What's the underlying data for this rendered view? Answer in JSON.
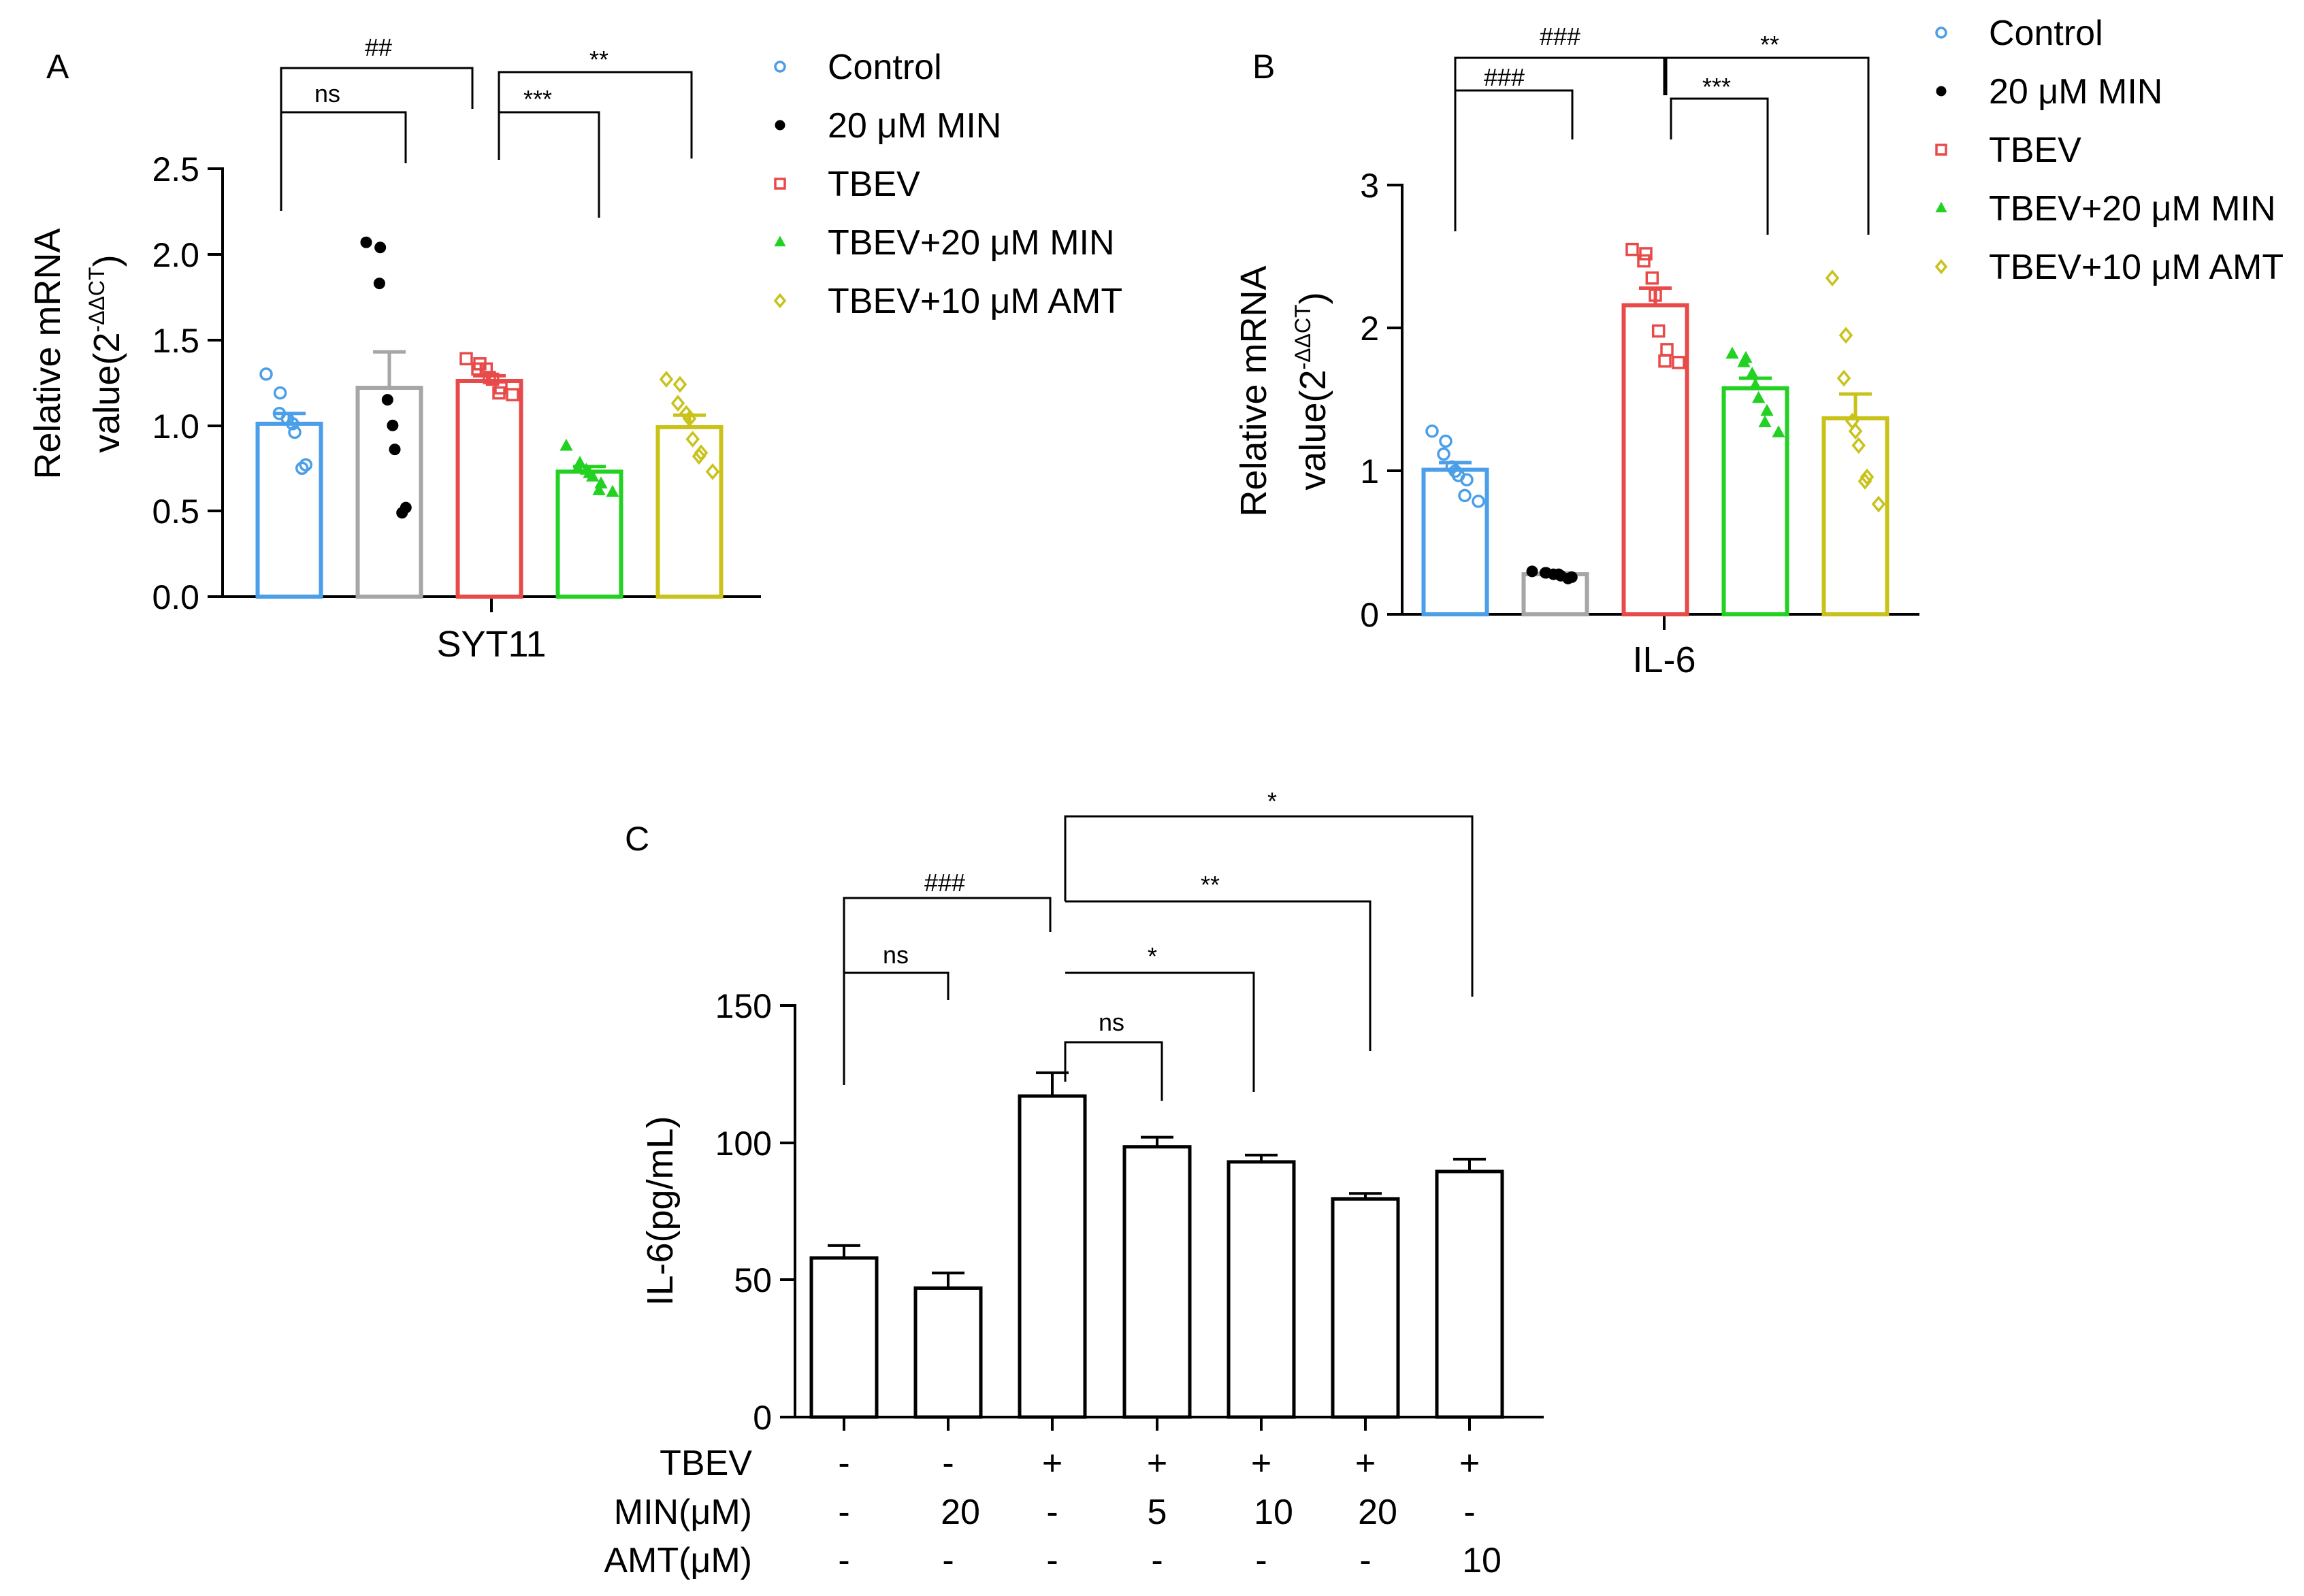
{
  "charts": {
    "A": {
      "letter": "A",
      "ylabel_line1": "Relative mRNA",
      "ylabel_line2_prefix": "value(2",
      "ylabel_line2_sup": "-ΔΔCT",
      "ylabel_line2_suffix": ")",
      "yticks": [
        "2.5",
        "2.0",
        "1.5",
        "1.0",
        "0.5",
        "0.0"
      ],
      "category": "SYT11",
      "sig": {
        "b1": "##",
        "b2": "ns",
        "b3": "**",
        "b4": "***"
      }
    },
    "B": {
      "letter": "B",
      "ylabel_line1": "Relative mRNA",
      "ylabel_line2_prefix": "value(2",
      "ylabel_line2_sup": "-ΔΔCT",
      "ylabel_line2_suffix": ")",
      "yticks": [
        "3",
        "2",
        "1",
        "0"
      ],
      "category": "IL-6",
      "sig": {
        "b1": "###",
        "b2": "###",
        "b3": "**",
        "b4": "***"
      }
    },
    "C": {
      "letter": "C",
      "ylabel": "IL-6(pg/mL)",
      "yticks": [
        "150",
        "100",
        "50",
        "0"
      ],
      "sig": {
        "b1": "###",
        "b2": "ns",
        "b3": "*",
        "b4": "**",
        "b5": "*",
        "b6": "ns"
      },
      "rows": [
        {
          "label": "TBEV",
          "values": [
            "-",
            "-",
            "+",
            "+",
            "+",
            "+",
            "+"
          ]
        },
        {
          "label": "MIN(μM)",
          "values": [
            "-",
            "20",
            "-",
            "5",
            "10",
            "20",
            "-"
          ]
        },
        {
          "label": "AMT(μM)",
          "values": [
            "-",
            "-",
            "-",
            "-",
            "-",
            "-",
            "10"
          ]
        }
      ]
    }
  },
  "legendA": [
    {
      "label": "Control",
      "marker": "circle-open",
      "color": "#4b9ee8"
    },
    {
      "label": "20 μM MIN",
      "marker": "dot",
      "color": "#000000"
    },
    {
      "label": "TBEV",
      "marker": "square-open",
      "color": "#e84a4a"
    },
    {
      "label": "TBEV+20 μM MIN",
      "marker": "triangle",
      "color": "#22d122"
    },
    {
      "label": "TBEV+10 μM AMT",
      "marker": "diamond-open",
      "color": "#c9c21a"
    }
  ],
  "legendB": [
    {
      "label": "Control",
      "marker": "circle-open",
      "color": "#4b9ee8"
    },
    {
      "label": "20 μM MIN",
      "marker": "dot",
      "color": "#000000"
    },
    {
      "label": "TBEV",
      "marker": "square-open",
      "color": "#e84a4a"
    },
    {
      "label": "TBEV+20 μM MIN",
      "marker": "triangle",
      "color": "#22d122"
    },
    {
      "label": "TBEV+10 μM AMT",
      "marker": "diamond-open",
      "color": "#c9c21a"
    }
  ],
  "chart_data": [
    {
      "panel": "A",
      "type": "bar",
      "ylabel": "Relative mRNA value(2-ΔΔCT)",
      "xlabel": "SYT11",
      "ylim": [
        0,
        2.5
      ],
      "series": [
        {
          "name": "Control",
          "value": 1.01,
          "error": 0.06,
          "color": "#4b9ee8",
          "bar_color": "#4b9ee8",
          "marker": "circle-open",
          "points": [
            1.3,
            1.19,
            1.07,
            1.04,
            1.01,
            0.96,
            0.77,
            0.75
          ]
        },
        {
          "name": "20 μM MIN",
          "value": 1.22,
          "error": 0.21,
          "color": "#000000",
          "bar_color": "#a6a6a6",
          "marker": "dot",
          "points": [
            2.07,
            2.04,
            1.83,
            1.15,
            1.0,
            0.86,
            0.52,
            0.49
          ]
        },
        {
          "name": "TBEV",
          "value": 1.26,
          "error": 0.03,
          "color": "#e84a4a",
          "bar_color": "#e84a4a",
          "marker": "square-open",
          "points": [
            1.39,
            1.36,
            1.33,
            1.33,
            1.28,
            1.27,
            1.22,
            1.19,
            1.18
          ]
        },
        {
          "name": "TBEV+20 μM MIN",
          "value": 0.73,
          "error": 0.03,
          "color": "#22d122",
          "bar_color": "#22d122",
          "marker": "triangle",
          "points": [
            0.88,
            0.78,
            0.75,
            0.74,
            0.72,
            0.7,
            0.66,
            0.62,
            0.61
          ]
        },
        {
          "name": "TBEV+10 μM AMT",
          "value": 0.99,
          "error": 0.07,
          "color": "#c9c21a",
          "bar_color": "#c9c21a",
          "marker": "diamond-open",
          "points": [
            1.27,
            1.24,
            1.13,
            1.07,
            1.04,
            0.92,
            0.84,
            0.82,
            0.73
          ]
        }
      ]
    },
    {
      "panel": "B",
      "type": "bar",
      "ylabel": "Relative mRNA value(2-ΔΔCT)",
      "xlabel": "IL-6",
      "ylim": [
        0,
        3
      ],
      "series": [
        {
          "name": "Control",
          "value": 1.01,
          "error": 0.05,
          "color": "#4b9ee8",
          "bar_color": "#4b9ee8",
          "marker": "circle-open",
          "points": [
            1.28,
            1.21,
            1.12,
            1.03,
            1.0,
            0.97,
            0.94,
            0.83,
            0.79
          ]
        },
        {
          "name": "20 μM MIN",
          "value": 0.28,
          "error": 0.01,
          "color": "#000000",
          "bar_color": "#a6a6a6",
          "marker": "dot",
          "points": [
            0.3,
            0.29,
            0.29,
            0.28,
            0.28,
            0.27,
            0.26,
            0.25
          ]
        },
        {
          "name": "TBEV",
          "value": 2.16,
          "error": 0.12,
          "color": "#e84a4a",
          "bar_color": "#e84a4a",
          "marker": "square-open",
          "points": [
            2.55,
            2.52,
            2.47,
            2.35,
            2.23,
            1.98,
            1.85,
            1.77,
            1.76
          ]
        },
        {
          "name": "TBEV+20 μM MIN",
          "value": 1.58,
          "error": 0.07,
          "color": "#22d122",
          "bar_color": "#22d122",
          "marker": "triangle",
          "points": [
            1.82,
            1.79,
            1.76,
            1.68,
            1.6,
            1.51,
            1.42,
            1.34,
            1.27
          ]
        },
        {
          "name": "TBEV+10 μM AMT",
          "value": 1.37,
          "error": 0.17,
          "color": "#c9c21a",
          "bar_color": "#c9c21a",
          "marker": "diamond-open",
          "points": [
            2.35,
            1.95,
            1.65,
            1.35,
            1.28,
            1.18,
            0.96,
            0.93,
            0.77
          ]
        }
      ]
    },
    {
      "panel": "C",
      "type": "bar",
      "ylabel": "IL-6(pg/mL)",
      "ylim": [
        0,
        150
      ],
      "categories": [
        "TBEV -, MIN -, AMT -",
        "TBEV -, MIN 20, AMT -",
        "TBEV +, MIN -, AMT -",
        "TBEV +, MIN 5, AMT -",
        "TBEV +, MIN 10, AMT -",
        "TBEV +, MIN 20, AMT -",
        "TBEV +, MIN -, AMT 10"
      ],
      "values": [
        58,
        47,
        117,
        98.5,
        93,
        79.5,
        89.5
      ],
      "errors": [
        4.5,
        5.5,
        8.5,
        3.5,
        2.5,
        2,
        4.5
      ]
    }
  ]
}
